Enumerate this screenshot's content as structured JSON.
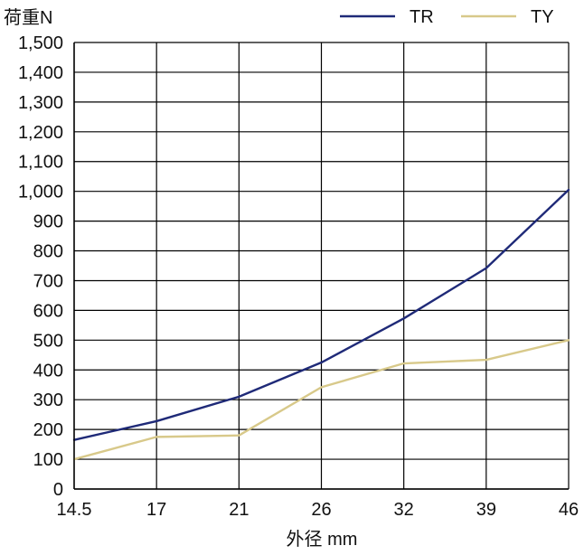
{
  "chart_data": {
    "type": "line",
    "ylabel": "荷重N",
    "xlabel": "外径 mm",
    "categories": [
      "14.5",
      "17",
      "21",
      "26",
      "32",
      "39",
      "46"
    ],
    "ylim": [
      0,
      1500
    ],
    "y_ticks": [
      0,
      100,
      200,
      300,
      400,
      500,
      600,
      700,
      800,
      900,
      1000,
      1100,
      1200,
      1300,
      1400,
      1500
    ],
    "y_tick_labels": [
      "0",
      "100",
      "200",
      "300",
      "400",
      "500",
      "600",
      "700",
      "800",
      "900",
      "1,000",
      "1,100",
      "1,200",
      "1,300",
      "1,400",
      "1,500"
    ],
    "grid": true,
    "legend_position": "top-right",
    "series": [
      {
        "name": "TR",
        "color": "#1f2a78",
        "values": [
          165,
          228,
          310,
          425,
          573,
          742,
          1005
        ]
      },
      {
        "name": "TY",
        "color": "#d8c98a",
        "values": [
          100,
          175,
          180,
          342,
          422,
          434,
          500
        ]
      }
    ]
  }
}
